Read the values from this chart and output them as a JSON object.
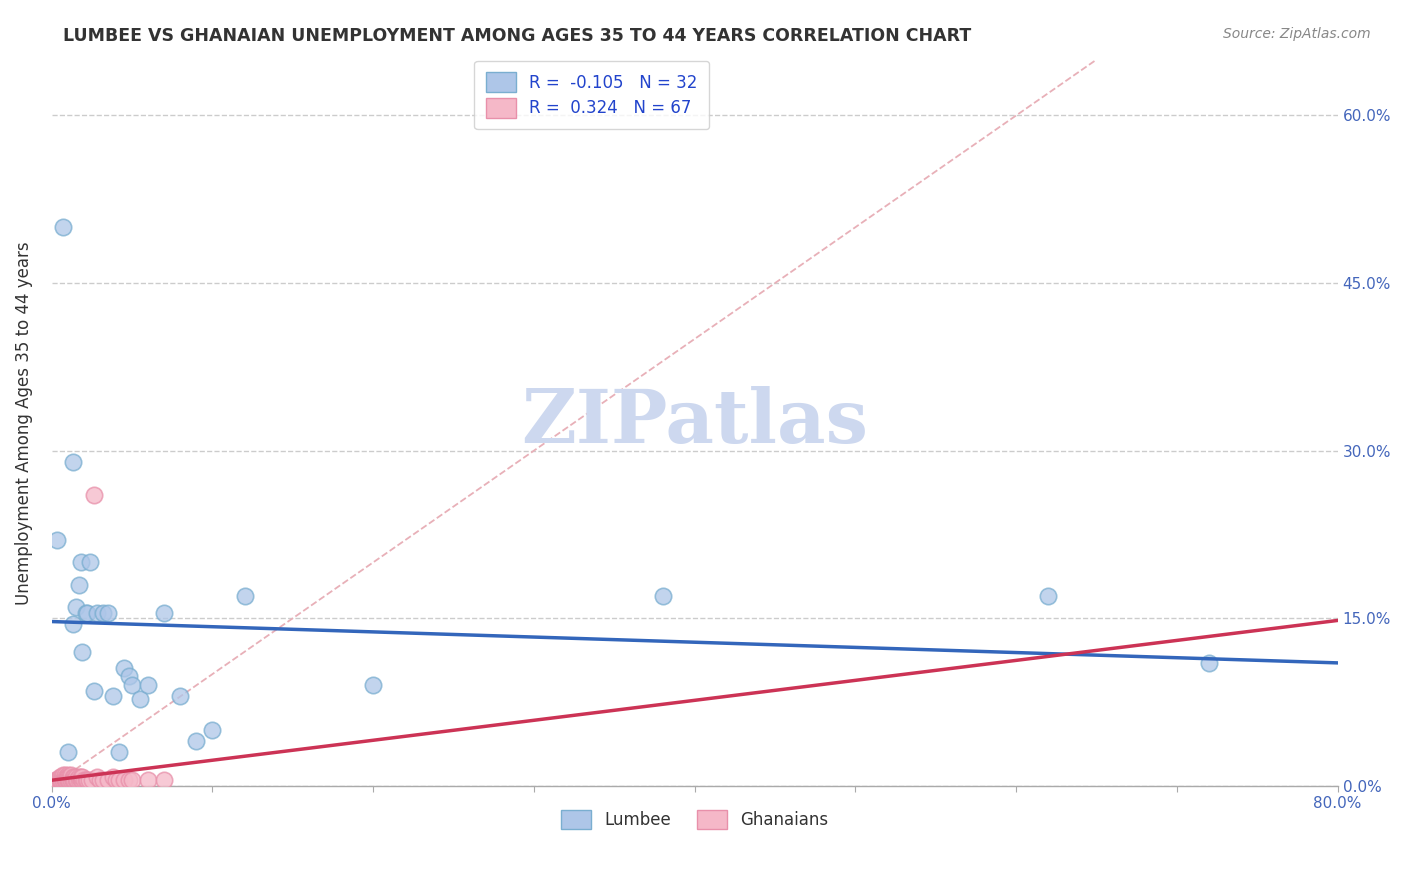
{
  "title": "LUMBEE VS GHANAIAN UNEMPLOYMENT AMONG AGES 35 TO 44 YEARS CORRELATION CHART",
  "source": "Source: ZipAtlas.com",
  "ylabel": "Unemployment Among Ages 35 to 44 years",
  "xlim": [
    0.0,
    0.8
  ],
  "ylim": [
    0.0,
    0.65
  ],
  "xticks": [
    0.0,
    0.1,
    0.2,
    0.3,
    0.4,
    0.5,
    0.6,
    0.7,
    0.8
  ],
  "yticks": [
    0.0,
    0.15,
    0.3,
    0.45,
    0.6
  ],
  "ytick_labels_right": [
    "0.0%",
    "15.0%",
    "30.0%",
    "45.0%",
    "60.0%"
  ],
  "xtick_label_left": "0.0%",
  "xtick_label_right": "80.0%",
  "lumbee_color": "#aec6e8",
  "ghanaian_color": "#f5b8c8",
  "lumbee_edge_color": "#7aaed0",
  "ghanaian_edge_color": "#e890aa",
  "lumbee_line_color": "#3366bb",
  "ghanaian_line_color": "#cc3355",
  "ref_line_color": "#e8b0b8",
  "ref_line_style": "--",
  "R_lumbee": -0.105,
  "N_lumbee": 32,
  "R_ghanaian": 0.324,
  "N_ghanaian": 67,
  "watermark": "ZIPatlas",
  "watermark_color": "#cdd8ef",
  "lumbee_x": [
    0.003,
    0.007,
    0.01,
    0.013,
    0.013,
    0.015,
    0.017,
    0.018,
    0.019,
    0.021,
    0.022,
    0.024,
    0.026,
    0.028,
    0.032,
    0.035,
    0.038,
    0.042,
    0.045,
    0.048,
    0.05,
    0.055,
    0.06,
    0.07,
    0.08,
    0.09,
    0.1,
    0.12,
    0.2,
    0.38,
    0.62,
    0.72
  ],
  "lumbee_y": [
    0.22,
    0.5,
    0.03,
    0.145,
    0.29,
    0.16,
    0.18,
    0.2,
    0.12,
    0.155,
    0.155,
    0.2,
    0.085,
    0.155,
    0.155,
    0.155,
    0.08,
    0.03,
    0.105,
    0.098,
    0.09,
    0.078,
    0.09,
    0.155,
    0.08,
    0.04,
    0.05,
    0.17,
    0.09,
    0.17,
    0.17,
    0.11
  ],
  "ghanaian_x": [
    0.002,
    0.003,
    0.004,
    0.005,
    0.005,
    0.005,
    0.006,
    0.006,
    0.006,
    0.007,
    0.007,
    0.007,
    0.007,
    0.008,
    0.008,
    0.008,
    0.008,
    0.009,
    0.009,
    0.009,
    0.01,
    0.01,
    0.01,
    0.01,
    0.01,
    0.01,
    0.011,
    0.011,
    0.011,
    0.012,
    0.012,
    0.012,
    0.012,
    0.013,
    0.013,
    0.013,
    0.014,
    0.014,
    0.014,
    0.015,
    0.015,
    0.016,
    0.016,
    0.017,
    0.017,
    0.018,
    0.018,
    0.019,
    0.019,
    0.02,
    0.021,
    0.022,
    0.023,
    0.025,
    0.026,
    0.028,
    0.03,
    0.032,
    0.035,
    0.038,
    0.04,
    0.042,
    0.045,
    0.048,
    0.05,
    0.06,
    0.07
  ],
  "ghanaian_y": [
    0.005,
    0.005,
    0.005,
    0.005,
    0.005,
    0.008,
    0.005,
    0.008,
    0.005,
    0.005,
    0.008,
    0.01,
    0.005,
    0.005,
    0.008,
    0.01,
    0.005,
    0.005,
    0.008,
    0.005,
    0.005,
    0.008,
    0.01,
    0.005,
    0.008,
    0.005,
    0.005,
    0.008,
    0.005,
    0.005,
    0.008,
    0.005,
    0.01,
    0.005,
    0.008,
    0.005,
    0.005,
    0.008,
    0.005,
    0.005,
    0.008,
    0.005,
    0.005,
    0.005,
    0.008,
    0.005,
    0.008,
    0.005,
    0.008,
    0.005,
    0.005,
    0.005,
    0.005,
    0.005,
    0.26,
    0.008,
    0.005,
    0.005,
    0.005,
    0.008,
    0.005,
    0.005,
    0.005,
    0.005,
    0.005,
    0.005,
    0.005
  ],
  "lumbee_line_x0": 0.0,
  "lumbee_line_y0": 0.147,
  "lumbee_line_x1": 0.8,
  "lumbee_line_y1": 0.11,
  "ghanaian_line_x0": 0.0,
  "ghanaian_line_y0": 0.005,
  "ghanaian_line_x1": 0.8,
  "ghanaian_line_y1": 0.148
}
